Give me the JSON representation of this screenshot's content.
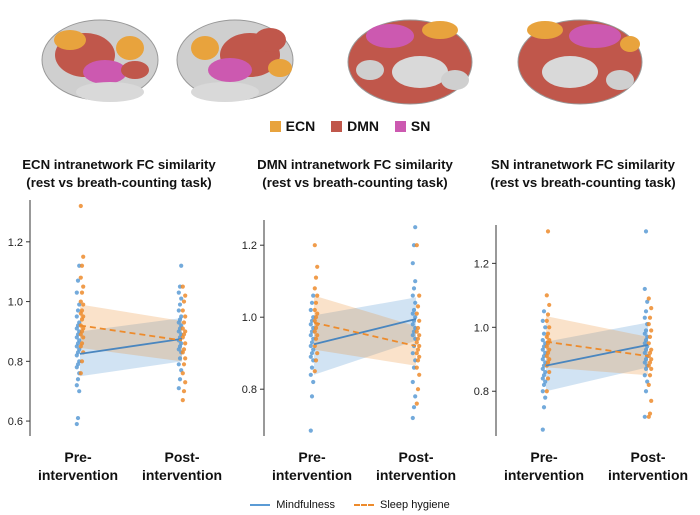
{
  "network_legend": [
    {
      "label": "ECN",
      "color": "#e8a33d"
    },
    {
      "label": "DMN",
      "color": "#c0574b"
    },
    {
      "label": "SN",
      "color": "#cc59b0"
    }
  ],
  "brain_images": [
    {
      "name": "left-lateral-brain"
    },
    {
      "name": "right-lateral-brain"
    },
    {
      "name": "left-medial-brain"
    },
    {
      "name": "right-medial-brain"
    }
  ],
  "series_legend": [
    {
      "label": "Mindfulness",
      "color": "#5b9bd5",
      "dash": "solid"
    },
    {
      "label": "Sleep hygiene",
      "color": "#ed8b2c",
      "dash": "dashed"
    }
  ],
  "chart_data": [
    {
      "type": "scatter",
      "title_line1": "ECN intranetwork FC similarity",
      "title_line2": "(rest vs breath-counting task)",
      "categories": [
        [
          "Pre-",
          "intervention"
        ],
        [
          "Post-",
          "intervention"
        ]
      ],
      "ylim": [
        0.55,
        1.34
      ],
      "yticks": [
        "0.6",
        "0.8",
        "1.0",
        "1.2"
      ],
      "ytick_values": [
        0.6,
        0.8,
        1.0,
        1.2
      ],
      "series": [
        {
          "name": "Mindfulness",
          "color": "#5b9bd5",
          "fit": [
            0.825,
            0.875
          ],
          "ci_lower": [
            0.75,
            0.8
          ],
          "ci_upper": [
            0.9,
            0.945
          ],
          "pre": [
            0.59,
            0.61,
            0.7,
            0.72,
            0.74,
            0.76,
            0.78,
            0.79,
            0.8,
            0.82,
            0.83,
            0.84,
            0.85,
            0.86,
            0.87,
            0.88,
            0.89,
            0.9,
            0.91,
            0.92,
            0.93,
            0.95,
            0.97,
            0.99,
            1.03,
            1.07,
            1.12
          ],
          "post": [
            0.71,
            0.74,
            0.77,
            0.79,
            0.81,
            0.83,
            0.84,
            0.85,
            0.86,
            0.87,
            0.88,
            0.89,
            0.9,
            0.91,
            0.92,
            0.93,
            0.94,
            0.95,
            0.97,
            0.99,
            1.01,
            1.03,
            1.05,
            1.12
          ]
        },
        {
          "name": "Sleep hygiene",
          "color": "#ed8b2c",
          "fit": [
            0.92,
            0.87
          ],
          "ci_lower": [
            0.845,
            0.8
          ],
          "ci_upper": [
            0.99,
            0.935
          ],
          "pre": [
            0.76,
            0.8,
            0.83,
            0.85,
            0.86,
            0.88,
            0.89,
            0.9,
            0.91,
            0.92,
            0.94,
            0.95,
            0.96,
            0.97,
            0.99,
            1.0,
            1.03,
            1.05,
            1.08,
            1.12,
            1.15,
            1.32
          ],
          "post": [
            0.67,
            0.7,
            0.73,
            0.76,
            0.79,
            0.81,
            0.83,
            0.84,
            0.86,
            0.88,
            0.89,
            0.9,
            0.91,
            0.93,
            0.95,
            0.97,
            1.0,
            1.02,
            1.05
          ]
        }
      ]
    },
    {
      "type": "scatter",
      "title_line1": "DMN intranetwork FC similarity",
      "title_line2": "(rest vs breath-counting task)",
      "categories": [
        [
          "Pre-",
          "intervention"
        ],
        [
          "Post-",
          "intervention"
        ]
      ],
      "ylim": [
        0.67,
        1.27
      ],
      "yticks": [
        "0.8",
        "1.0",
        "1.2"
      ],
      "ytick_values": [
        0.8,
        1.0,
        1.2
      ],
      "series": [
        {
          "name": "Mindfulness",
          "color": "#5b9bd5",
          "fit": [
            0.925,
            0.995
          ],
          "ci_lower": [
            0.84,
            0.935
          ],
          "ci_upper": [
            1.005,
            1.055
          ],
          "pre": [
            0.685,
            0.78,
            0.82,
            0.84,
            0.86,
            0.88,
            0.89,
            0.9,
            0.91,
            0.92,
            0.93,
            0.94,
            0.95,
            0.96,
            0.97,
            0.98,
            0.99,
            1.0,
            1.02,
            1.04,
            1.06
          ],
          "post": [
            0.72,
            0.75,
            0.78,
            0.82,
            0.86,
            0.88,
            0.9,
            0.92,
            0.94,
            0.95,
            0.96,
            0.97,
            0.98,
            0.99,
            1.0,
            1.01,
            1.02,
            1.04,
            1.06,
            1.08,
            1.1,
            1.15,
            1.2,
            1.25
          ]
        },
        {
          "name": "Sleep hygiene",
          "color": "#ed8b2c",
          "fit": [
            0.985,
            0.92
          ],
          "ci_lower": [
            0.91,
            0.865
          ],
          "ci_upper": [
            1.06,
            0.975
          ],
          "pre": [
            0.85,
            0.88,
            0.9,
            0.92,
            0.94,
            0.95,
            0.96,
            0.97,
            0.98,
            0.99,
            1.0,
            1.01,
            1.02,
            1.04,
            1.06,
            1.08,
            1.11,
            1.14,
            1.2
          ],
          "post": [
            0.76,
            0.8,
            0.84,
            0.86,
            0.88,
            0.89,
            0.9,
            0.91,
            0.92,
            0.93,
            0.94,
            0.95,
            0.96,
            0.97,
            0.99,
            1.01,
            1.03,
            1.06,
            1.2
          ]
        }
      ]
    },
    {
      "type": "scatter",
      "title_line1": "SN intranetwork FC similarity",
      "title_line2": "(rest vs breath-counting task)",
      "categories": [
        [
          "Pre-",
          "intervention"
        ],
        [
          "Post-",
          "intervention"
        ]
      ],
      "ylim": [
        0.66,
        1.32
      ],
      "yticks": [
        "0.8",
        "1.0",
        "1.2"
      ],
      "ytick_values": [
        0.8,
        1.0,
        1.2
      ],
      "series": [
        {
          "name": "Mindfulness",
          "color": "#5b9bd5",
          "fit": [
            0.88,
            0.945
          ],
          "ci_lower": [
            0.8,
            0.875
          ],
          "ci_upper": [
            0.955,
            1.015
          ],
          "pre": [
            0.68,
            0.75,
            0.78,
            0.8,
            0.82,
            0.83,
            0.84,
            0.85,
            0.86,
            0.87,
            0.88,
            0.89,
            0.9,
            0.91,
            0.92,
            0.93,
            0.94,
            0.95,
            0.96,
            0.98,
            1.0,
            1.02,
            1.05
          ],
          "post": [
            0.72,
            0.8,
            0.83,
            0.85,
            0.87,
            0.88,
            0.89,
            0.9,
            0.91,
            0.92,
            0.93,
            0.94,
            0.95,
            0.96,
            0.97,
            0.98,
            0.99,
            1.01,
            1.03,
            1.05,
            1.08,
            1.12,
            1.3
          ]
        },
        {
          "name": "Sleep hygiene",
          "color": "#ed8b2c",
          "fit": [
            0.955,
            0.91
          ],
          "ci_lower": [
            0.875,
            0.85
          ],
          "ci_upper": [
            1.035,
            0.97
          ],
          "pre": [
            0.8,
            0.84,
            0.86,
            0.88,
            0.89,
            0.9,
            0.91,
            0.92,
            0.93,
            0.94,
            0.95,
            0.96,
            0.97,
            0.98,
            1.0,
            1.02,
            1.04,
            1.07,
            1.1,
            1.3
          ],
          "post": [
            0.72,
            0.73,
            0.77,
            0.82,
            0.85,
            0.87,
            0.88,
            0.89,
            0.9,
            0.91,
            0.92,
            0.93,
            0.95,
            0.97,
            0.99,
            1.01,
            1.03,
            1.06,
            1.09
          ]
        }
      ]
    }
  ]
}
